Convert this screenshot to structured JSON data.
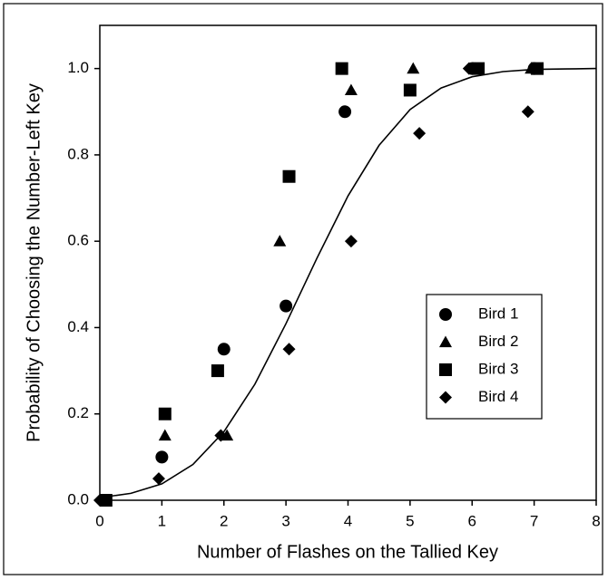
{
  "chart_data": {
    "type": "scatter",
    "x_label": "Number of Flashes on the Tallied Key",
    "y_label": "Probability of Choosing the Number-Left Key",
    "xlim": [
      0,
      8
    ],
    "ylim": [
      0,
      1.1
    ],
    "xticks": [
      0,
      1,
      2,
      3,
      4,
      5,
      6,
      7,
      8
    ],
    "yticks": [
      {
        "value": 0,
        "label": "0.0"
      },
      {
        "value": 0.2,
        "label": "0.2"
      },
      {
        "value": 0.4,
        "label": "0.4"
      },
      {
        "value": 0.6,
        "label": "0.6"
      },
      {
        "value": 0.8,
        "label": "0.8"
      },
      {
        "value": 1.0,
        "label": "1.0"
      }
    ],
    "legend": "lower right",
    "series": [
      {
        "name": "Bird 1",
        "marker": "circle",
        "color": "#000000",
        "x": [
          0.05,
          1,
          2,
          3,
          3.95,
          6,
          7
        ],
        "values": [
          0,
          0.1,
          0.35,
          0.45,
          0.9,
          1.0,
          1.0
        ]
      },
      {
        "name": "Bird 2",
        "marker": "triangle",
        "color": "#000000",
        "x": [
          1.05,
          2.05,
          2.9,
          4.05,
          5.05,
          6.05,
          6.95
        ],
        "values": [
          0.15,
          0.15,
          0.6,
          0.95,
          1.0,
          1.0,
          1.0
        ]
      },
      {
        "name": "Bird 3",
        "marker": "square",
        "color": "#000000",
        "x": [
          0.1,
          1.05,
          1.9,
          3.05,
          3.9,
          5,
          6.1,
          7.05
        ],
        "values": [
          0,
          0.2,
          0.3,
          0.75,
          1.0,
          0.95,
          1.0,
          1.0
        ]
      },
      {
        "name": "Bird 4",
        "marker": "diamond",
        "color": "#000000",
        "x": [
          0,
          0.95,
          1.95,
          3.05,
          4.05,
          5.15,
          5.95,
          6.9
        ],
        "values": [
          0,
          0.05,
          0.15,
          0.35,
          0.6,
          0.85,
          1.0,
          0.9
        ]
      }
    ],
    "curve": {
      "color": "#000000",
      "x": [
        0,
        0.5,
        1,
        1.5,
        2,
        2.5,
        3,
        3.5,
        4,
        4.5,
        5,
        5.5,
        6,
        6.5,
        7,
        7.5,
        8
      ],
      "values": [
        0.006,
        0.016,
        0.038,
        0.083,
        0.159,
        0.269,
        0.409,
        0.561,
        0.705,
        0.822,
        0.905,
        0.955,
        0.981,
        0.993,
        0.998,
        0.999,
        1.0
      ]
    }
  }
}
